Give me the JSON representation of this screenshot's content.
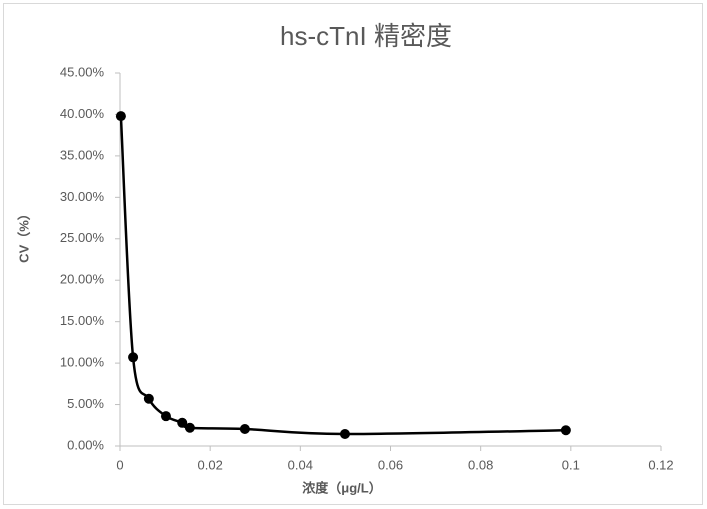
{
  "chart_data": {
    "type": "scatter",
    "title": "hs-cTnI 精密度",
    "x_label": "浓度（μg/L）",
    "y_label": "CV（%）",
    "x": [
      0.0002,
      0.0029,
      0.0064,
      0.0102,
      0.0138,
      0.0155,
      0.0277,
      0.0499,
      0.0989
    ],
    "values": [
      39.8,
      10.7,
      5.7,
      3.6,
      2.8,
      2.2,
      2.05,
      1.45,
      1.9
    ],
    "color": "#000000",
    "smooth": true,
    "grid": false,
    "xlim": [
      0,
      0.12
    ],
    "xticks": [
      0,
      0.02,
      0.04,
      0.06,
      0.08,
      0.1,
      0.12
    ],
    "ylim": [
      0,
      45
    ],
    "yticks": [
      {
        "value": 0,
        "label": "0.00%"
      },
      {
        "value": 5,
        "label": "5.00%"
      },
      {
        "value": 10,
        "label": "10.00%"
      },
      {
        "value": 15,
        "label": "15.00%"
      },
      {
        "value": 20,
        "label": "20.00%"
      },
      {
        "value": 25,
        "label": "25.00%"
      },
      {
        "value": 30,
        "label": "30.00%"
      },
      {
        "value": 35,
        "label": "35.00%"
      },
      {
        "value": 40,
        "label": "40.00%"
      },
      {
        "value": 45,
        "label": "45.00%"
      }
    ]
  }
}
